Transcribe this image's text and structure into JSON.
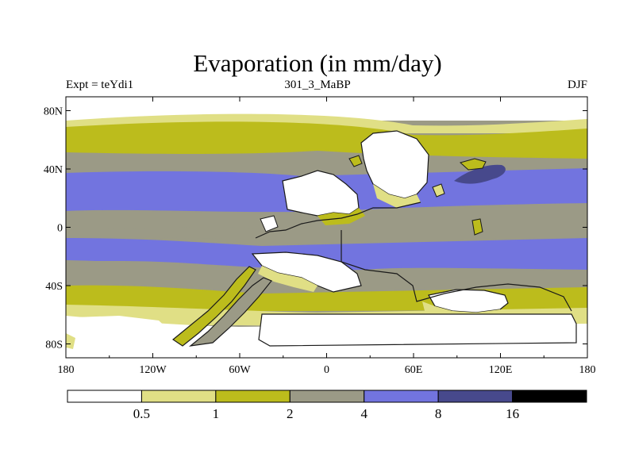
{
  "title": "Evaporation (in mm/day)",
  "subtitle_left": "Expt = teYdi1",
  "subtitle_center": "301_3_MaBP",
  "subtitle_right": "DJF",
  "x_ticks": [
    "180",
    "120W",
    "60W",
    "0",
    "60E",
    "120E",
    "180"
  ],
  "y_ticks": [
    "80N",
    "40N",
    "0",
    "40S",
    "80S"
  ],
  "colorbar": {
    "labels": [
      "0.5",
      "1",
      "2",
      "4",
      "8",
      "16"
    ],
    "colors": [
      "#ffffff",
      "#e0df85",
      "#bcbc1c",
      "#9b9a86",
      "#7274df",
      "#47498c",
      "#000000"
    ]
  },
  "palette": {
    "white": "#ffffff",
    "light_yellow": "#e0df85",
    "olive": "#bcbc1c",
    "gray": "#9b9a86",
    "blue": "#7274df",
    "dark_blue": "#47498c",
    "coast": "#1a1a1a"
  }
}
